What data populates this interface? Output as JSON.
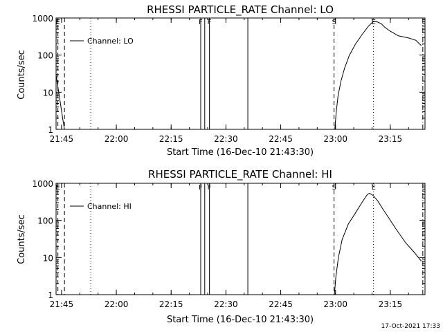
{
  "footer_timestamp": "17-Oct-2021 17:33",
  "chart_data": [
    {
      "type": "line",
      "title": "RHESSI PARTICLE_RATE Channel: LO",
      "xlabel": "Start Time (16-Dec-10 21:43:30)",
      "ylabel": "Counts/sec",
      "legend": {
        "label": "Channel: LO",
        "placement": "top-left"
      },
      "x_unit": "minutes after 21:43:30",
      "xlim": [
        0,
        101
      ],
      "ylim": [
        1,
        1000
      ],
      "yscale": "log",
      "x_ticks": [
        {
          "x": 1.5,
          "label": "21:45"
        },
        {
          "x": 16.5,
          "label": "22:00"
        },
        {
          "x": 31.5,
          "label": "22:15"
        },
        {
          "x": 46.5,
          "label": "22:30"
        },
        {
          "x": 61.5,
          "label": "22:45"
        },
        {
          "x": 76.5,
          "label": "23:00"
        },
        {
          "x": 91.5,
          "label": "23:15"
        }
      ],
      "y_ticks": [
        {
          "y": 1,
          "label": "1"
        },
        {
          "y": 10,
          "label": "10"
        },
        {
          "y": 100,
          "label": "100"
        },
        {
          "y": 1000,
          "label": "1000"
        }
      ],
      "series": [
        {
          "name": "Channel: LO",
          "points": [
            [
              0,
              30
            ],
            [
              0.6,
              12
            ],
            [
              1.2,
              5
            ],
            [
              1.8,
              2
            ],
            [
              2.3,
              1
            ],
            [
              76.3,
              1
            ],
            [
              76.7,
              3
            ],
            [
              77.2,
              8
            ],
            [
              78,
              20
            ],
            [
              79,
              45
            ],
            [
              80.3,
              100
            ],
            [
              82,
              200
            ],
            [
              83.7,
              350
            ],
            [
              85.5,
              600
            ],
            [
              86.8,
              800
            ],
            [
              88,
              780
            ],
            [
              89,
              700
            ],
            [
              90,
              560
            ],
            [
              91.5,
              440
            ],
            [
              93.7,
              330
            ],
            [
              96.5,
              290
            ],
            [
              98.5,
              250
            ],
            [
              100,
              180
            ]
          ]
        }
      ],
      "markers": [
        {
          "x": 0.5,
          "label": "E",
          "style": "dashed"
        },
        {
          "x": 2.3,
          "label": "",
          "style": "dashed"
        },
        {
          "x": 9.5,
          "label": "",
          "style": "dotted"
        },
        {
          "x": 39.6,
          "label": "F",
          "style": "solid"
        },
        {
          "x": 40.7,
          "label": "",
          "style": "solid"
        },
        {
          "x": 42,
          "label": "F",
          "style": "solid"
        },
        {
          "x": 52.5,
          "label": "",
          "style": "solid"
        },
        {
          "x": 76.1,
          "label": "S",
          "style": "dashed"
        },
        {
          "x": 86.9,
          "label": "E",
          "style": "dotted"
        },
        {
          "x": 100.4,
          "label": "",
          "style": "dashdot"
        }
      ]
    },
    {
      "type": "line",
      "title": "RHESSI PARTICLE_RATE Channel: HI",
      "xlabel": "Start Time (16-Dec-10 21:43:30)",
      "ylabel": "Counts/sec",
      "legend": {
        "label": "Channel: HI",
        "placement": "top-left"
      },
      "x_unit": "minutes after 21:43:30",
      "xlim": [
        0,
        101
      ],
      "ylim": [
        1,
        1000
      ],
      "yscale": "log",
      "x_ticks": [
        {
          "x": 1.5,
          "label": "21:45"
        },
        {
          "x": 16.5,
          "label": "22:00"
        },
        {
          "x": 31.5,
          "label": "22:15"
        },
        {
          "x": 46.5,
          "label": "22:30"
        },
        {
          "x": 61.5,
          "label": "22:45"
        },
        {
          "x": 76.5,
          "label": "23:00"
        },
        {
          "x": 91.5,
          "label": "23:15"
        }
      ],
      "y_ticks": [
        {
          "y": 1,
          "label": "1"
        },
        {
          "y": 10,
          "label": "10"
        },
        {
          "y": 100,
          "label": "100"
        },
        {
          "y": 1000,
          "label": "1000"
        }
      ],
      "series": [
        {
          "name": "Channel: HI",
          "points": [
            [
              76.2,
              1
            ],
            [
              76.6,
              3
            ],
            [
              77.3,
              10
            ],
            [
              78.3,
              30
            ],
            [
              80,
              80
            ],
            [
              81.8,
              150
            ],
            [
              83.7,
              300
            ],
            [
              85.2,
              500
            ],
            [
              85.8,
              540
            ],
            [
              86.8,
              470
            ],
            [
              88,
              340
            ],
            [
              89.5,
              200
            ],
            [
              91,
              120
            ],
            [
              93,
              60
            ],
            [
              95.7,
              25
            ],
            [
              98,
              14
            ],
            [
              100,
              8
            ]
          ]
        }
      ],
      "markers": [
        {
          "x": 0.5,
          "label": "E",
          "style": "dashed"
        },
        {
          "x": 2.3,
          "label": "",
          "style": "dashed"
        },
        {
          "x": 9.5,
          "label": "",
          "style": "dotted"
        },
        {
          "x": 39.6,
          "label": "F",
          "style": "solid"
        },
        {
          "x": 40.7,
          "label": "",
          "style": "solid"
        },
        {
          "x": 42,
          "label": "F",
          "style": "solid"
        },
        {
          "x": 52.5,
          "label": "",
          "style": "solid"
        },
        {
          "x": 76.1,
          "label": "S",
          "style": "dashed"
        },
        {
          "x": 86.9,
          "label": "E",
          "style": "dotted"
        },
        {
          "x": 100.4,
          "label": "",
          "style": "dashdot"
        }
      ]
    }
  ]
}
